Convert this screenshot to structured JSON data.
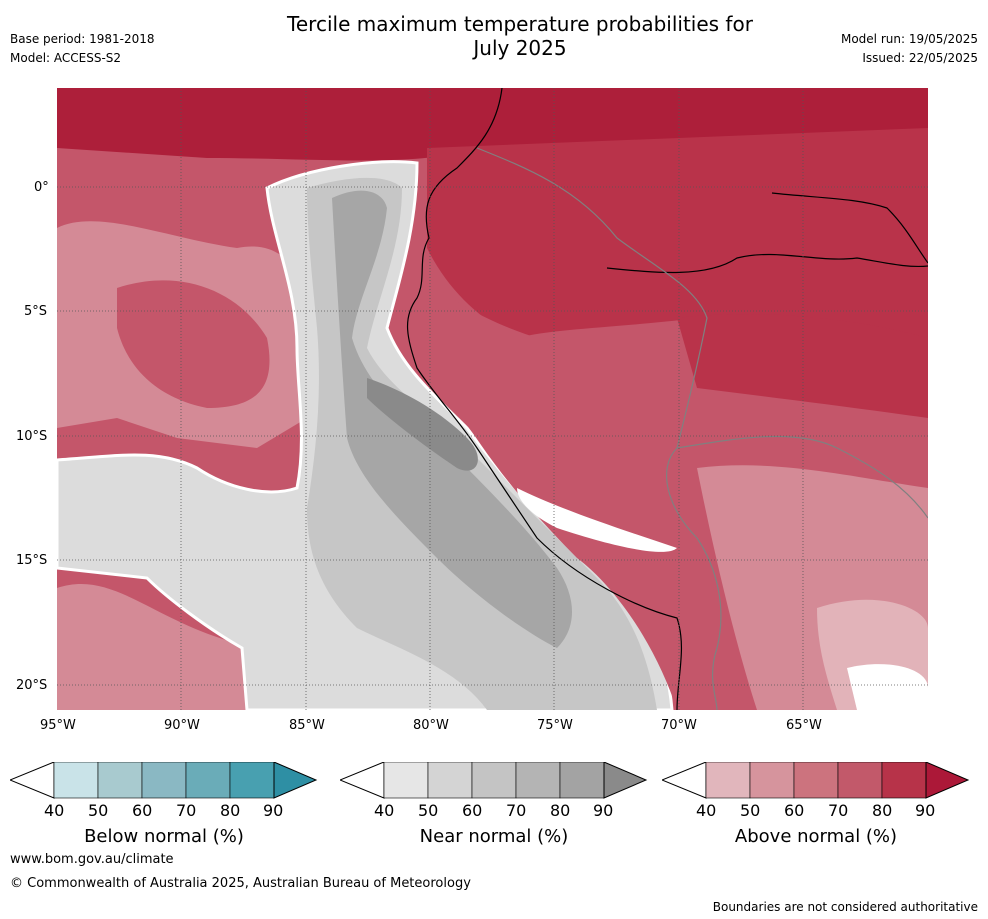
{
  "header": {
    "base_period": "Base period: 1981-2018",
    "model": "Model: ACCESS-S2",
    "title_line1": "Tercile maximum temperature probabilities for",
    "title_line2": "July 2025",
    "model_run": "Model run: 19/05/2025",
    "issued": "Issued: 22/05/2025"
  },
  "map": {
    "lat_labels": [
      "0°",
      "5°S",
      "10°S",
      "15°S",
      "20°S"
    ],
    "lon_labels": [
      "95°W",
      "90°W",
      "85°W",
      "80°W",
      "75°W",
      "70°W",
      "65°W"
    ],
    "colors": {
      "ocean_hot": "#c4566a",
      "ocean_warm": "#d48a96",
      "ocean_light": "#e2b3b9",
      "land_hot": "#b9334a",
      "land_very_hot": "#ad1f3a",
      "near_light": "#dcdcdc",
      "near_mid": "#c6c6c6",
      "near_dark": "#a6a6a6",
      "near_darkest": "#8a8a8a"
    }
  },
  "colorbars": [
    {
      "label": "Below normal (%)",
      "ticks": [
        "40",
        "50",
        "60",
        "70",
        "80",
        "90"
      ],
      "colors": [
        "#c9e3e8",
        "#a8cacf",
        "#8ab8c3",
        "#6aacb8",
        "#48a0b0",
        "#2e8fa4"
      ]
    },
    {
      "label": "Near normal (%)",
      "ticks": [
        "40",
        "50",
        "60",
        "70",
        "80",
        "90"
      ],
      "colors": [
        "#e6e6e6",
        "#d4d4d4",
        "#c4c4c4",
        "#b4b4b4",
        "#a3a3a3",
        "#8a8a8a"
      ]
    },
    {
      "label": "Above normal (%)",
      "ticks": [
        "40",
        "50",
        "60",
        "70",
        "80",
        "90"
      ],
      "colors": [
        "#e1b6bc",
        "#d6949d",
        "#cc737e",
        "#c2596a",
        "#b73349",
        "#ac1838"
      ]
    }
  ],
  "footer": {
    "website": "www.bom.gov.au/climate",
    "copyright": "© Commonwealth of Australia 2025, Australian Bureau of Meteorology",
    "disclaimer": "Boundaries are not considered authoritative"
  }
}
